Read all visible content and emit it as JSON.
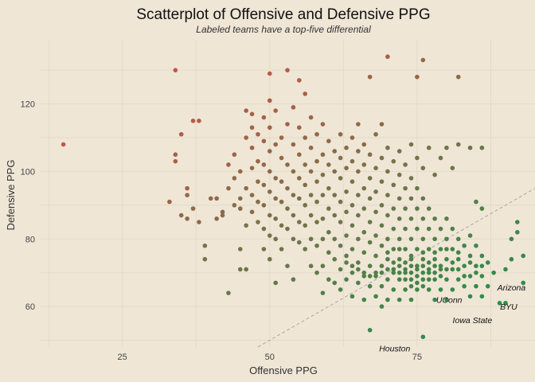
{
  "chart_data": {
    "type": "scatter",
    "title": "Scatterplot of Offensive and Defensive PPG",
    "subtitle": "Labeled teams have a top-five differential",
    "xlabel": "Offensive PPG",
    "ylabel": "Defensive PPG",
    "xlim": [
      11,
      95
    ],
    "ylim": [
      48,
      139
    ],
    "x_ticks": [
      25,
      50,
      75
    ],
    "y_ticks": [
      60,
      80,
      100,
      120
    ],
    "grid": true,
    "legend": "none",
    "reference_line": {
      "type": "y=x",
      "style": "dashed"
    },
    "color_scale": {
      "low": "#c65547",
      "high": "#24904a"
    },
    "labels": [
      {
        "text": "Arizona",
        "x": 88.6,
        "y": 61.0
      },
      {
        "text": "BYU",
        "x": 88.8,
        "y": 61.0
      },
      {
        "text": "UConn",
        "x": 81.2,
        "y": 63.0
      },
      {
        "text": "Iowa State",
        "x": 84.0,
        "y": 59.8
      },
      {
        "text": "Houston",
        "x": 76.0,
        "y": 51.0
      }
    ],
    "points": [
      [
        15,
        108
      ],
      [
        34,
        130
      ],
      [
        34,
        103
      ],
      [
        34,
        105
      ],
      [
        35,
        111
      ],
      [
        35,
        87
      ],
      [
        36,
        95
      ],
      [
        36,
        93
      ],
      [
        36,
        86
      ],
      [
        37,
        115
      ],
      [
        37,
        89
      ],
      [
        38,
        115
      ],
      [
        38,
        85
      ],
      [
        39,
        78
      ],
      [
        39,
        74
      ],
      [
        33,
        91
      ],
      [
        40,
        92
      ],
      [
        41,
        92
      ],
      [
        41,
        86
      ],
      [
        42,
        88
      ],
      [
        42,
        87
      ],
      [
        43,
        102
      ],
      [
        43,
        95
      ],
      [
        43,
        64
      ],
      [
        44,
        90
      ],
      [
        44,
        98
      ],
      [
        44,
        105
      ],
      [
        45,
        92
      ],
      [
        45,
        100
      ],
      [
        45,
        89
      ],
      [
        45,
        77
      ],
      [
        45,
        71
      ],
      [
        46,
        118
      ],
      [
        46,
        110
      ],
      [
        46,
        95
      ],
      [
        46,
        84
      ],
      [
        46,
        71
      ],
      [
        47,
        117
      ],
      [
        47,
        113
      ],
      [
        47,
        107
      ],
      [
        47,
        101
      ],
      [
        47,
        93
      ],
      [
        47,
        88
      ],
      [
        48,
        111
      ],
      [
        48,
        103
      ],
      [
        48,
        97
      ],
      [
        48,
        91
      ],
      [
        48,
        85
      ],
      [
        49,
        116
      ],
      [
        49,
        109
      ],
      [
        49,
        102
      ],
      [
        49,
        96
      ],
      [
        49,
        90
      ],
      [
        49,
        83
      ],
      [
        49,
        77
      ],
      [
        50,
        121
      ],
      [
        50,
        113
      ],
      [
        50,
        106
      ],
      [
        50,
        100
      ],
      [
        50,
        94
      ],
      [
        50,
        87
      ],
      [
        50,
        81
      ],
      [
        50,
        74
      ],
      [
        50,
        129
      ],
      [
        51,
        118
      ],
      [
        51,
        108
      ],
      [
        51,
        98
      ],
      [
        51,
        92
      ],
      [
        51,
        86
      ],
      [
        51,
        80
      ],
      [
        51,
        67
      ],
      [
        52,
        110
      ],
      [
        52,
        104
      ],
      [
        52,
        97
      ],
      [
        52,
        91
      ],
      [
        52,
        84
      ],
      [
        52,
        77
      ],
      [
        53,
        130
      ],
      [
        53,
        114
      ],
      [
        53,
        102
      ],
      [
        53,
        95
      ],
      [
        53,
        89
      ],
      [
        53,
        83
      ],
      [
        53,
        72
      ],
      [
        54,
        119
      ],
      [
        54,
        108
      ],
      [
        54,
        100
      ],
      [
        54,
        93
      ],
      [
        54,
        87
      ],
      [
        54,
        80
      ],
      [
        54,
        68
      ],
      [
        55,
        127
      ],
      [
        55,
        113
      ],
      [
        55,
        105
      ],
      [
        55,
        98
      ],
      [
        55,
        92
      ],
      [
        55,
        85
      ],
      [
        55,
        79
      ],
      [
        56,
        123
      ],
      [
        56,
        110
      ],
      [
        56,
        102
      ],
      [
        56,
        96
      ],
      [
        56,
        90
      ],
      [
        56,
        84
      ],
      [
        56,
        77
      ],
      [
        57,
        116
      ],
      [
        57,
        107
      ],
      [
        57,
        100
      ],
      [
        57,
        93
      ],
      [
        57,
        87
      ],
      [
        57,
        80
      ],
      [
        57,
        72
      ],
      [
        58,
        111
      ],
      [
        58,
        103
      ],
      [
        58,
        97
      ],
      [
        58,
        91
      ],
      [
        58,
        85
      ],
      [
        58,
        78
      ],
      [
        58,
        70
      ],
      [
        59,
        114
      ],
      [
        59,
        105
      ],
      [
        59,
        99
      ],
      [
        59,
        93
      ],
      [
        59,
        86
      ],
      [
        59,
        80
      ],
      [
        59,
        72
      ],
      [
        59,
        64
      ],
      [
        60,
        109
      ],
      [
        60,
        102
      ],
      [
        60,
        95
      ],
      [
        60,
        89
      ],
      [
        60,
        82
      ],
      [
        60,
        76
      ],
      [
        60,
        68
      ],
      [
        61,
        106
      ],
      [
        61,
        100
      ],
      [
        61,
        93
      ],
      [
        61,
        87
      ],
      [
        61,
        80
      ],
      [
        61,
        74
      ],
      [
        61,
        67
      ],
      [
        62,
        111
      ],
      [
        62,
        104
      ],
      [
        62,
        98
      ],
      [
        62,
        91
      ],
      [
        62,
        85
      ],
      [
        62,
        78
      ],
      [
        62,
        71
      ],
      [
        62,
        65
      ],
      [
        63,
        107
      ],
      [
        63,
        101
      ],
      [
        63,
        94
      ],
      [
        63,
        88
      ],
      [
        63,
        81
      ],
      [
        63,
        75
      ],
      [
        63,
        68
      ],
      [
        64,
        110
      ],
      [
        64,
        103
      ],
      [
        64,
        97
      ],
      [
        64,
        90
      ],
      [
        64,
        84
      ],
      [
        64,
        77
      ],
      [
        64,
        70
      ],
      [
        64,
        63
      ],
      [
        65,
        114
      ],
      [
        65,
        106
      ],
      [
        65,
        100
      ],
      [
        65,
        93
      ],
      [
        65,
        87
      ],
      [
        65,
        80
      ],
      [
        65,
        73
      ],
      [
        65,
        67
      ],
      [
        66,
        108
      ],
      [
        66,
        102
      ],
      [
        66,
        95
      ],
      [
        66,
        89
      ],
      [
        66,
        82
      ],
      [
        66,
        76
      ],
      [
        66,
        69
      ],
      [
        66,
        62
      ],
      [
        67,
        128
      ],
      [
        67,
        105
      ],
      [
        67,
        98
      ],
      [
        67,
        92
      ],
      [
        67,
        85
      ],
      [
        67,
        79
      ],
      [
        67,
        72
      ],
      [
        67,
        66
      ],
      [
        67,
        53
      ],
      [
        68,
        111
      ],
      [
        68,
        101
      ],
      [
        68,
        94
      ],
      [
        68,
        88
      ],
      [
        68,
        81
      ],
      [
        68,
        75
      ],
      [
        68,
        69
      ],
      [
        68,
        63
      ],
      [
        69,
        114
      ],
      [
        69,
        104
      ],
      [
        69,
        97
      ],
      [
        69,
        90
      ],
      [
        69,
        84
      ],
      [
        69,
        78
      ],
      [
        69,
        72
      ],
      [
        69,
        66
      ],
      [
        69,
        60
      ],
      [
        70,
        134
      ],
      [
        70,
        107
      ],
      [
        70,
        100
      ],
      [
        70,
        93
      ],
      [
        70,
        87
      ],
      [
        70,
        80
      ],
      [
        70,
        74
      ],
      [
        70,
        68
      ],
      [
        70,
        62
      ],
      [
        71,
        103
      ],
      [
        71,
        96
      ],
      [
        71,
        89
      ],
      [
        71,
        83
      ],
      [
        71,
        77
      ],
      [
        71,
        71
      ],
      [
        71,
        65
      ],
      [
        72,
        106
      ],
      [
        72,
        99
      ],
      [
        72,
        92
      ],
      [
        72,
        86
      ],
      [
        72,
        80
      ],
      [
        72,
        74
      ],
      [
        72,
        68
      ],
      [
        72,
        62
      ],
      [
        73,
        102
      ],
      [
        73,
        95
      ],
      [
        73,
        89
      ],
      [
        73,
        83
      ],
      [
        73,
        77
      ],
      [
        73,
        71
      ],
      [
        73,
        65
      ],
      [
        74,
        108
      ],
      [
        74,
        98
      ],
      [
        74,
        92
      ],
      [
        74,
        86
      ],
      [
        74,
        80
      ],
      [
        74,
        74
      ],
      [
        74,
        68
      ],
      [
        74,
        62
      ],
      [
        75,
        128
      ],
      [
        75,
        104
      ],
      [
        75,
        95
      ],
      [
        75,
        89
      ],
      [
        75,
        83
      ],
      [
        75,
        77
      ],
      [
        75,
        71
      ],
      [
        75,
        65
      ],
      [
        76,
        133
      ],
      [
        76,
        101
      ],
      [
        76,
        92
      ],
      [
        76,
        86
      ],
      [
        76,
        80
      ],
      [
        76,
        74
      ],
      [
        76,
        68
      ],
      [
        76,
        51
      ],
      [
        77,
        107
      ],
      [
        77,
        89
      ],
      [
        77,
        83
      ],
      [
        77,
        77
      ],
      [
        77,
        71
      ],
      [
        77,
        65
      ],
      [
        78,
        99
      ],
      [
        78,
        86
      ],
      [
        78,
        80
      ],
      [
        78,
        74
      ],
      [
        78,
        68
      ],
      [
        78,
        62
      ],
      [
        79,
        104
      ],
      [
        79,
        83
      ],
      [
        79,
        77
      ],
      [
        79,
        71
      ],
      [
        79,
        65
      ],
      [
        80,
        107
      ],
      [
        80,
        86
      ],
      [
        80,
        80
      ],
      [
        80,
        74
      ],
      [
        80,
        68
      ],
      [
        80,
        62
      ],
      [
        81,
        101
      ],
      [
        81,
        83
      ],
      [
        81,
        77
      ],
      [
        81,
        71
      ],
      [
        81,
        65
      ],
      [
        82,
        128
      ],
      [
        82,
        108
      ],
      [
        82,
        80
      ],
      [
        82,
        74
      ],
      [
        82,
        68
      ],
      [
        83,
        78
      ],
      [
        83,
        72
      ],
      [
        83,
        66
      ],
      [
        84,
        107
      ],
      [
        84,
        81
      ],
      [
        84,
        75
      ],
      [
        84,
        69
      ],
      [
        84,
        63
      ],
      [
        85,
        91
      ],
      [
        85,
        78
      ],
      [
        85,
        72
      ],
      [
        85,
        66
      ],
      [
        86,
        107
      ],
      [
        86,
        89
      ],
      [
        86,
        75
      ],
      [
        86,
        69
      ],
      [
        86,
        63
      ],
      [
        87,
        73
      ],
      [
        87,
        66
      ],
      [
        88,
        70
      ],
      [
        89,
        61
      ],
      [
        90,
        71
      ],
      [
        90,
        61
      ],
      [
        91,
        80
      ],
      [
        91,
        74
      ],
      [
        92,
        85
      ],
      [
        92,
        82
      ],
      [
        93,
        67
      ],
      [
        93,
        75
      ],
      [
        73,
        73
      ],
      [
        74,
        70
      ],
      [
        75,
        72
      ],
      [
        76,
        70
      ],
      [
        72,
        70
      ],
      [
        73,
        68
      ],
      [
        74,
        72
      ],
      [
        75,
        69
      ],
      [
        76,
        72
      ],
      [
        77,
        70
      ],
      [
        78,
        70
      ],
      [
        79,
        72
      ],
      [
        77,
        73
      ],
      [
        71,
        73
      ],
      [
        70,
        71
      ],
      [
        69,
        70
      ],
      [
        76,
        66
      ],
      [
        75,
        67
      ],
      [
        74,
        66
      ],
      [
        73,
        70
      ],
      [
        72,
        72
      ],
      [
        71,
        70
      ],
      [
        77,
        68
      ],
      [
        78,
        72
      ],
      [
        79,
        69
      ],
      [
        80,
        71
      ],
      [
        81,
        73
      ],
      [
        82,
        71
      ],
      [
        83,
        69
      ],
      [
        84,
        73
      ],
      [
        85,
        70
      ],
      [
        86,
        72
      ],
      [
        68,
        70
      ],
      [
        67,
        69
      ],
      [
        66,
        70
      ],
      [
        65,
        71
      ],
      [
        64,
        72
      ],
      [
        63,
        73
      ],
      [
        70,
        76
      ],
      [
        72,
        77
      ],
      [
        74,
        75
      ],
      [
        76,
        76
      ],
      [
        78,
        76
      ],
      [
        80,
        77
      ],
      [
        82,
        76
      ]
    ]
  }
}
